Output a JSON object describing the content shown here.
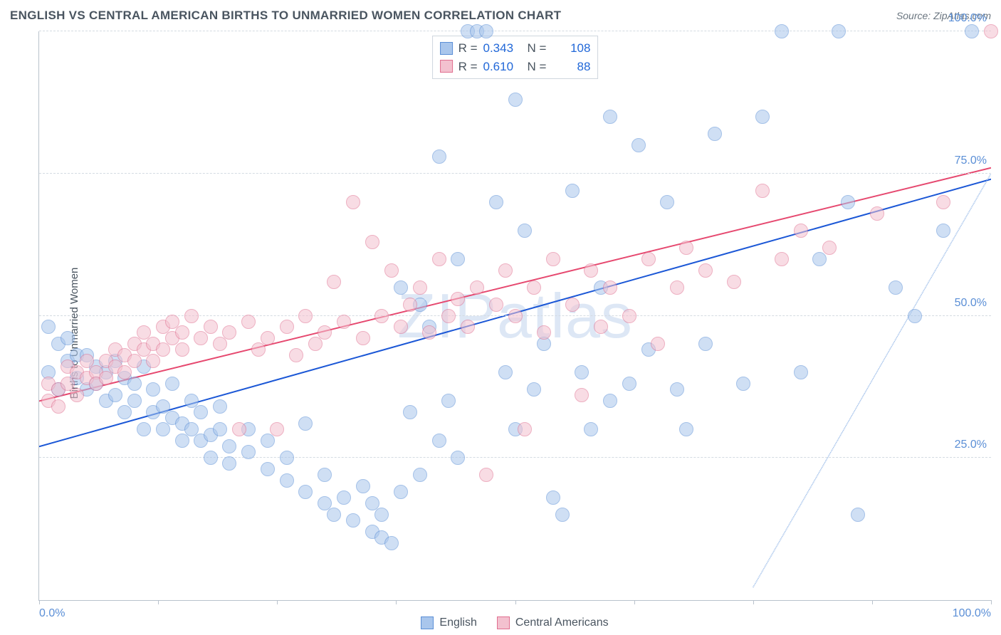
{
  "title": "ENGLISH VS CENTRAL AMERICAN BIRTHS TO UNMARRIED WOMEN CORRELATION CHART",
  "source_label": "Source: ZipAtlas.com",
  "ylabel": "Births to Unmarried Women",
  "watermark": "ZIPatlas",
  "chart": {
    "type": "scatter",
    "background_color": "#ffffff",
    "grid_color": "#d4dbe2",
    "axis_color": "#b9c2cc",
    "tick_label_color": "#5b8fd6",
    "xlim": [
      0,
      100
    ],
    "ylim": [
      0,
      100
    ],
    "yticks": [
      0,
      25,
      50,
      75,
      100
    ],
    "ytick_labels": [
      "0.0%",
      "25.0%",
      "50.0%",
      "75.0%",
      "100.0%"
    ],
    "xticks": [
      0,
      12.5,
      25,
      37.5,
      50,
      62.5,
      75,
      87.5,
      100
    ],
    "xtick_labels": {
      "0": "0.0%",
      "100": "100.0%"
    },
    "marker_radius": 10,
    "marker_opacity": 0.55,
    "series": [
      {
        "id": "english",
        "label": "English",
        "fill": "#a9c6ec",
        "stroke": "#5b8fd6",
        "trend_color": "#1b57d6",
        "trend_dash_color": "#8fb4e6",
        "stats": {
          "R": "0.343",
          "N": "108"
        },
        "trend": {
          "x0": 0,
          "y0": 27,
          "x1": 100,
          "y1": 74
        },
        "points": [
          [
            1,
            48
          ],
          [
            1,
            40
          ],
          [
            2,
            45
          ],
          [
            2,
            37
          ],
          [
            3,
            42
          ],
          [
            3,
            46
          ],
          [
            4,
            39
          ],
          [
            4,
            43
          ],
          [
            5,
            43
          ],
          [
            5,
            37
          ],
          [
            6,
            41
          ],
          [
            6,
            38
          ],
          [
            7,
            40
          ],
          [
            7,
            35
          ],
          [
            8,
            42
          ],
          [
            8,
            36
          ],
          [
            9,
            39
          ],
          [
            9,
            33
          ],
          [
            10,
            38
          ],
          [
            10,
            35
          ],
          [
            11,
            41
          ],
          [
            11,
            30
          ],
          [
            12,
            37
          ],
          [
            12,
            33
          ],
          [
            13,
            34
          ],
          [
            13,
            30
          ],
          [
            14,
            38
          ],
          [
            14,
            32
          ],
          [
            15,
            31
          ],
          [
            15,
            28
          ],
          [
            16,
            35
          ],
          [
            16,
            30
          ],
          [
            17,
            28
          ],
          [
            17,
            33
          ],
          [
            18,
            29
          ],
          [
            18,
            25
          ],
          [
            19,
            34
          ],
          [
            19,
            30
          ],
          [
            20,
            27
          ],
          [
            20,
            24
          ],
          [
            22,
            26
          ],
          [
            22,
            30
          ],
          [
            24,
            23
          ],
          [
            24,
            28
          ],
          [
            26,
            21
          ],
          [
            26,
            25
          ],
          [
            28,
            19
          ],
          [
            28,
            31
          ],
          [
            30,
            17
          ],
          [
            30,
            22
          ],
          [
            31,
            15
          ],
          [
            32,
            18
          ],
          [
            33,
            14
          ],
          [
            34,
            20
          ],
          [
            35,
            12
          ],
          [
            35,
            17
          ],
          [
            36,
            11
          ],
          [
            36,
            15
          ],
          [
            37,
            10
          ],
          [
            38,
            19
          ],
          [
            38,
            55
          ],
          [
            39,
            33
          ],
          [
            40,
            22
          ],
          [
            40,
            52
          ],
          [
            41,
            48
          ],
          [
            42,
            78
          ],
          [
            42,
            28
          ],
          [
            43,
            35
          ],
          [
            44,
            60
          ],
          [
            44,
            25
          ],
          [
            45,
            100
          ],
          [
            46,
            100
          ],
          [
            47,
            100
          ],
          [
            48,
            70
          ],
          [
            49,
            40
          ],
          [
            50,
            30
          ],
          [
            50,
            88
          ],
          [
            51,
            65
          ],
          [
            52,
            37
          ],
          [
            53,
            45
          ],
          [
            54,
            18
          ],
          [
            55,
            15
          ],
          [
            56,
            72
          ],
          [
            57,
            40
          ],
          [
            58,
            30
          ],
          [
            59,
            55
          ],
          [
            60,
            85
          ],
          [
            60,
            35
          ],
          [
            62,
            38
          ],
          [
            63,
            80
          ],
          [
            64,
            44
          ],
          [
            66,
            70
          ],
          [
            67,
            37
          ],
          [
            68,
            30
          ],
          [
            70,
            45
          ],
          [
            71,
            82
          ],
          [
            74,
            38
          ],
          [
            76,
            85
          ],
          [
            78,
            100
          ],
          [
            80,
            40
          ],
          [
            82,
            60
          ],
          [
            84,
            100
          ],
          [
            85,
            70
          ],
          [
            86,
            15
          ],
          [
            90,
            55
          ],
          [
            92,
            50
          ],
          [
            95,
            65
          ],
          [
            98,
            100
          ]
        ]
      },
      {
        "id": "central_americans",
        "label": "Central Americans",
        "fill": "#f3c1cf",
        "stroke": "#e06f90",
        "trend_color": "#e6486f",
        "stats": {
          "R": "0.610",
          "N": "88"
        },
        "trend": {
          "x0": 0,
          "y0": 35,
          "x1": 100,
          "y1": 76
        },
        "points": [
          [
            1,
            35
          ],
          [
            1,
            38
          ],
          [
            2,
            37
          ],
          [
            2,
            34
          ],
          [
            3,
            38
          ],
          [
            3,
            41
          ],
          [
            4,
            40
          ],
          [
            4,
            36
          ],
          [
            5,
            39
          ],
          [
            5,
            42
          ],
          [
            6,
            40
          ],
          [
            6,
            38
          ],
          [
            7,
            42
          ],
          [
            7,
            39
          ],
          [
            8,
            44
          ],
          [
            8,
            41
          ],
          [
            9,
            43
          ],
          [
            9,
            40
          ],
          [
            10,
            45
          ],
          [
            10,
            42
          ],
          [
            11,
            44
          ],
          [
            11,
            47
          ],
          [
            12,
            42
          ],
          [
            12,
            45
          ],
          [
            13,
            48
          ],
          [
            13,
            44
          ],
          [
            14,
            46
          ],
          [
            14,
            49
          ],
          [
            15,
            47
          ],
          [
            15,
            44
          ],
          [
            16,
            50
          ],
          [
            17,
            46
          ],
          [
            18,
            48
          ],
          [
            19,
            45
          ],
          [
            20,
            47
          ],
          [
            21,
            30
          ],
          [
            22,
            49
          ],
          [
            23,
            44
          ],
          [
            24,
            46
          ],
          [
            25,
            30
          ],
          [
            26,
            48
          ],
          [
            27,
            43
          ],
          [
            28,
            50
          ],
          [
            29,
            45
          ],
          [
            30,
            47
          ],
          [
            31,
            56
          ],
          [
            32,
            49
          ],
          [
            33,
            70
          ],
          [
            34,
            46
          ],
          [
            35,
            63
          ],
          [
            36,
            50
          ],
          [
            37,
            58
          ],
          [
            38,
            48
          ],
          [
            39,
            52
          ],
          [
            40,
            55
          ],
          [
            41,
            47
          ],
          [
            42,
            60
          ],
          [
            43,
            50
          ],
          [
            44,
            53
          ],
          [
            45,
            48
          ],
          [
            46,
            55
          ],
          [
            47,
            22
          ],
          [
            48,
            52
          ],
          [
            49,
            58
          ],
          [
            50,
            50
          ],
          [
            51,
            30
          ],
          [
            52,
            55
          ],
          [
            53,
            47
          ],
          [
            54,
            60
          ],
          [
            56,
            52
          ],
          [
            57,
            36
          ],
          [
            58,
            58
          ],
          [
            59,
            48
          ],
          [
            60,
            55
          ],
          [
            62,
            50
          ],
          [
            64,
            60
          ],
          [
            65,
            45
          ],
          [
            67,
            55
          ],
          [
            68,
            62
          ],
          [
            70,
            58
          ],
          [
            73,
            56
          ],
          [
            76,
            72
          ],
          [
            78,
            60
          ],
          [
            80,
            65
          ],
          [
            83,
            62
          ],
          [
            88,
            68
          ],
          [
            95,
            70
          ],
          [
            100,
            100
          ]
        ]
      }
    ],
    "legend_stats_box": {
      "R_label": "R =",
      "N_label": "N ="
    },
    "bottom_legend": true
  }
}
